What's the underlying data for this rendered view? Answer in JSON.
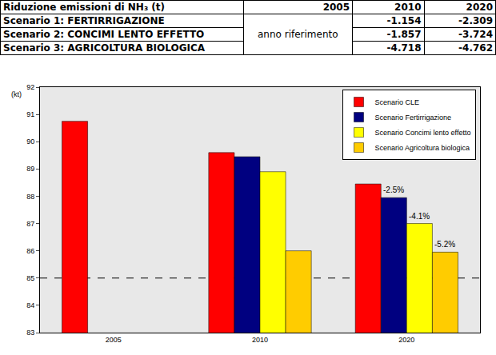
{
  "table": {
    "header": [
      "Riduzione emissioni di NH₃ (t)",
      "2005",
      "2010",
      "2020"
    ],
    "reference_note": "anno riferimento",
    "rows": [
      [
        "Scenario 1: FERTIRRIGAZIONE",
        "-1.154",
        "-2.309"
      ],
      [
        "Scenario 2: CONCIMI LENTO EFFETTO",
        "-1.857",
        "-3.724"
      ],
      [
        "Scenario 3: AGRICOLTURA BIOLOGICA",
        "-4.718",
        "-4.762"
      ]
    ]
  },
  "chart_data": {
    "type": "bar",
    "ylabel": "(kt)",
    "categories": [
      "2005",
      "2010",
      "2020"
    ],
    "series": [
      {
        "name": "Scenario CLE",
        "color": "#ff0000",
        "values": [
          90.75,
          89.6,
          88.45
        ]
      },
      {
        "name": "Scenario Fertirrigazione",
        "color": "#000080",
        "values": [
          null,
          89.45,
          87.95
        ]
      },
      {
        "name": "Scenario Concimi lento effetto",
        "color": "#ffff00",
        "values": [
          null,
          88.9,
          87.0
        ]
      },
      {
        "name": "Scenario Agricoltura biologica",
        "color": "#ffcc00",
        "values": [
          null,
          86.0,
          85.95
        ]
      }
    ],
    "annotations": [
      {
        "text": "-2.5%",
        "category": "2020",
        "series": "Scenario Fertirrigazione"
      },
      {
        "text": "-4.1%",
        "category": "2020",
        "series": "Scenario Concimi lento effetto"
      },
      {
        "text": "-5.2%",
        "category": "2020",
        "series": "Scenario Agricoltura biologica"
      }
    ],
    "threshold": 85,
    "ylim": [
      83,
      92
    ],
    "yticks": [
      83,
      84,
      85,
      86,
      87,
      88,
      89,
      90,
      91,
      92
    ],
    "legend": "top-right",
    "grid": false
  }
}
